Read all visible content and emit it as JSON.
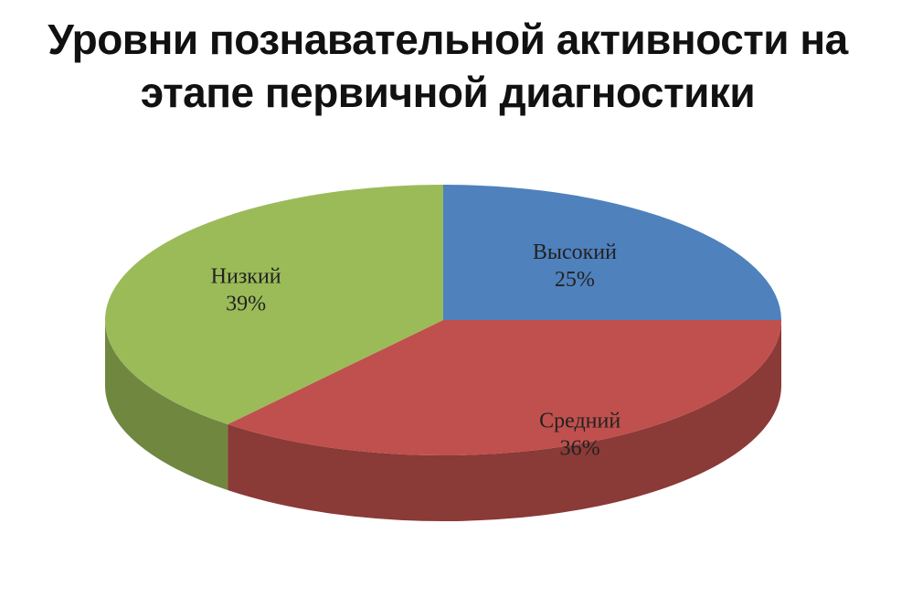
{
  "chart_data": {
    "type": "pie",
    "title": "Уровни познавательной активности на этапе первичной диагностики",
    "categories": [
      "Высокий",
      "Средний",
      "Низкий"
    ],
    "values": [
      25,
      36,
      39
    ],
    "value_labels": [
      "25%",
      "36%",
      "39%"
    ],
    "colors": [
      "#4f81bd",
      "#c0504d",
      "#9bbb59"
    ]
  }
}
